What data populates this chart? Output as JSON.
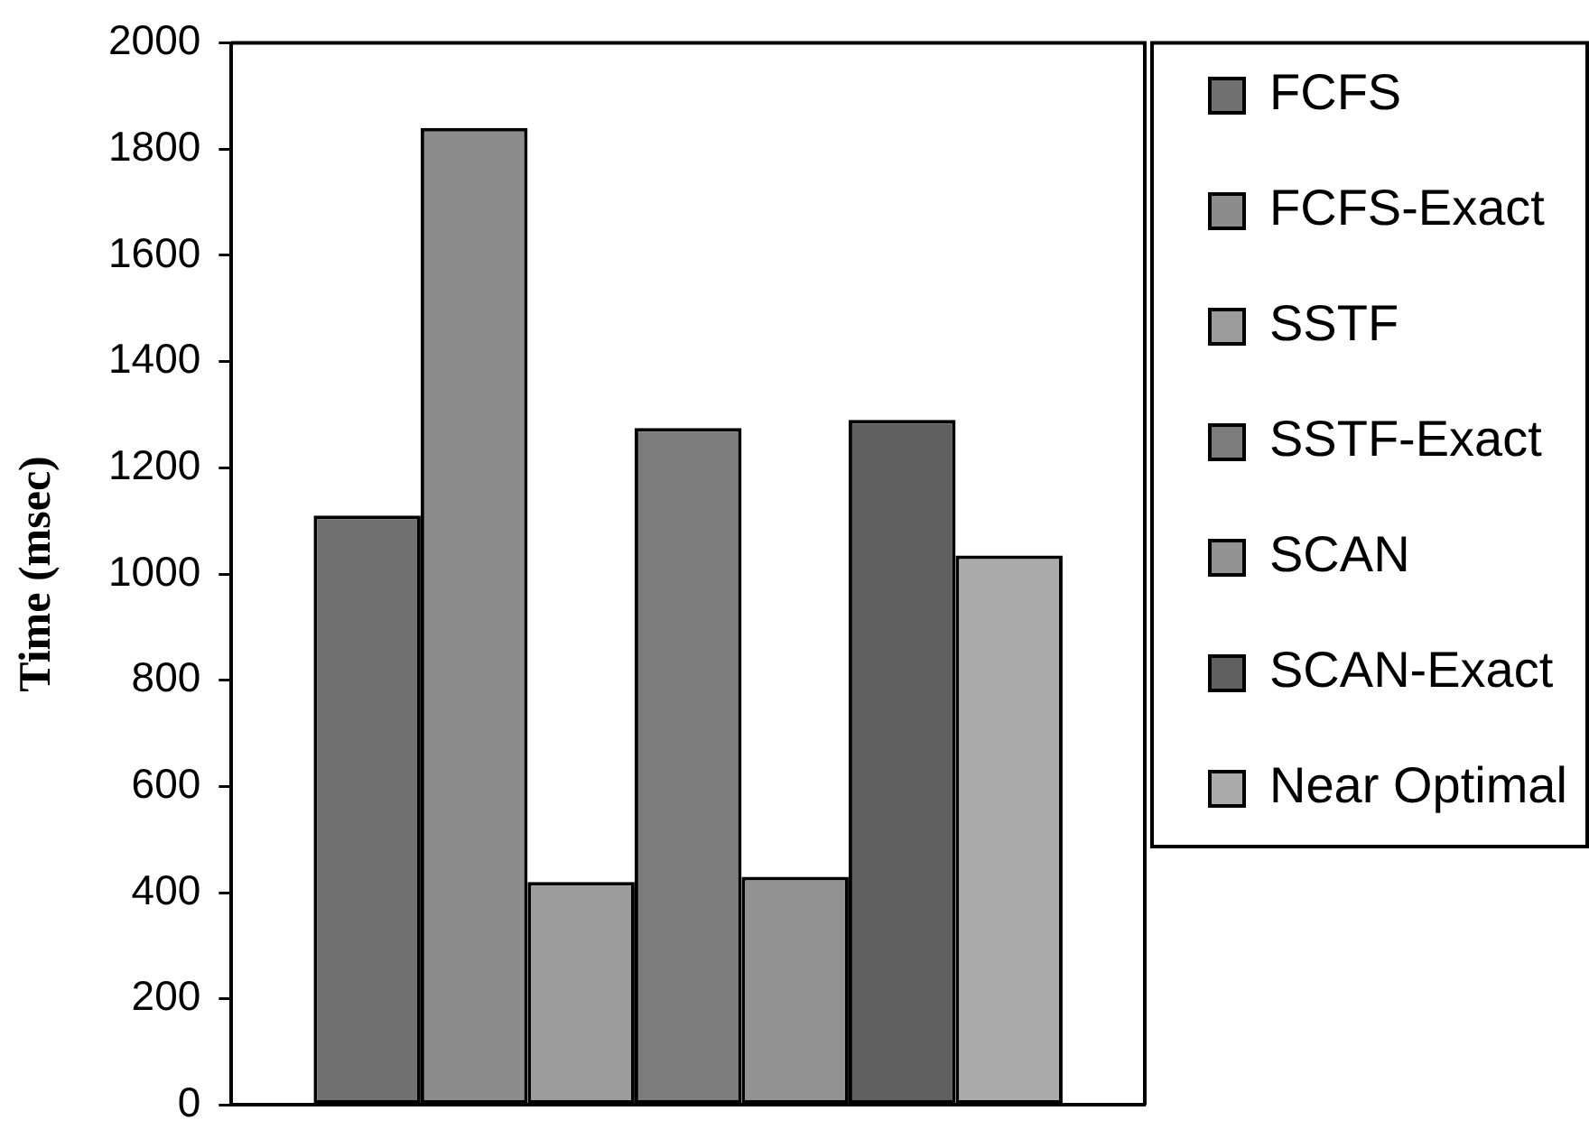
{
  "chart_data": {
    "type": "bar",
    "ylabel": "Time (msec)",
    "categories": [
      null
    ],
    "series": [
      {
        "name": "FCFS",
        "color": "#707070",
        "values": [
          1110
        ]
      },
      {
        "name": "FCFS-Exact",
        "color": "#8c8c8c",
        "values": [
          1840
        ]
      },
      {
        "name": "SSTF",
        "color": "#9c9c9c",
        "values": [
          420
        ]
      },
      {
        "name": "SSTF-Exact",
        "color": "#7c7c7c",
        "values": [
          1275
        ]
      },
      {
        "name": "SCAN",
        "color": "#929292",
        "values": [
          430
        ]
      },
      {
        "name": "SCAN-Exact",
        "color": "#606060",
        "values": [
          1290
        ]
      },
      {
        "name": "Near Optimal",
        "color": "#ababab",
        "values": [
          1035
        ]
      }
    ],
    "ylim": [
      0,
      2000
    ],
    "yticks": [
      0,
      200,
      400,
      600,
      800,
      1000,
      1200,
      1400,
      1600,
      1800,
      2000
    ],
    "grid": false,
    "legend": "top right"
  }
}
